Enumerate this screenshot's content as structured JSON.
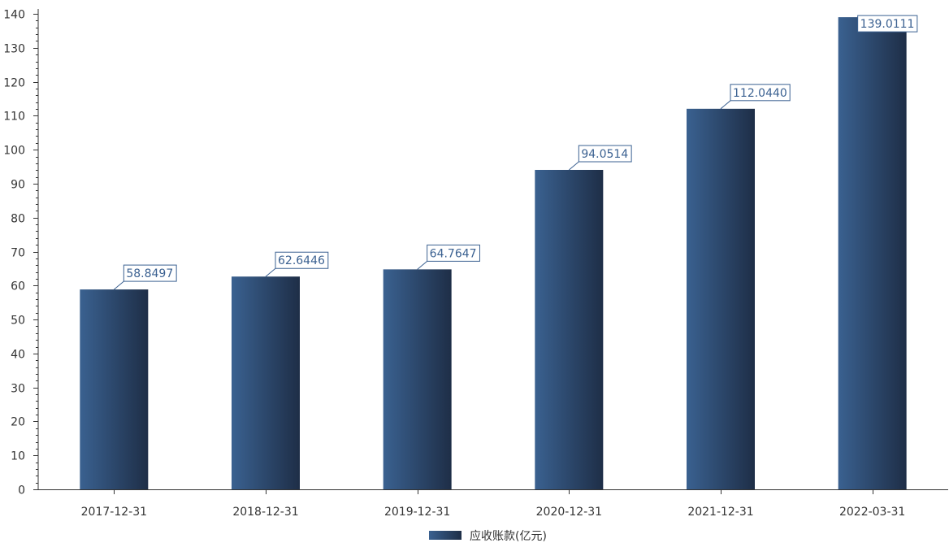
{
  "chart_data": {
    "type": "bar",
    "categories": [
      "2017-12-31",
      "2018-12-31",
      "2019-12-31",
      "2020-12-31",
      "2021-12-31",
      "2022-03-31"
    ],
    "series": [
      {
        "name": "应收账款(亿元)",
        "values": [
          58.8497,
          62.6446,
          64.7647,
          94.0514,
          112.044,
          139.0111
        ],
        "labels": [
          "58.8497",
          "62.6446",
          "64.7647",
          "94.0514",
          "112.0440",
          "139.0111"
        ]
      }
    ],
    "title": "",
    "xlabel": "",
    "ylabel": "",
    "ylim": [
      0,
      140
    ],
    "yticks": [
      0,
      10,
      20,
      30,
      40,
      50,
      60,
      70,
      80,
      90,
      100,
      110,
      120,
      130,
      140
    ],
    "ytick_labels": [
      "0",
      "10",
      "20",
      "30",
      "40",
      "50",
      "60",
      "70",
      "80",
      "90",
      "100",
      "110",
      "120",
      "130",
      "140"
    ],
    "grid": false,
    "legend_position": "bottom-center",
    "colors": {
      "bar_light": "#3a6190",
      "bar_dark": "#1e2e47",
      "label_text": "#3b6191",
      "label_border": "#3b6191",
      "axis": "#333333"
    }
  }
}
